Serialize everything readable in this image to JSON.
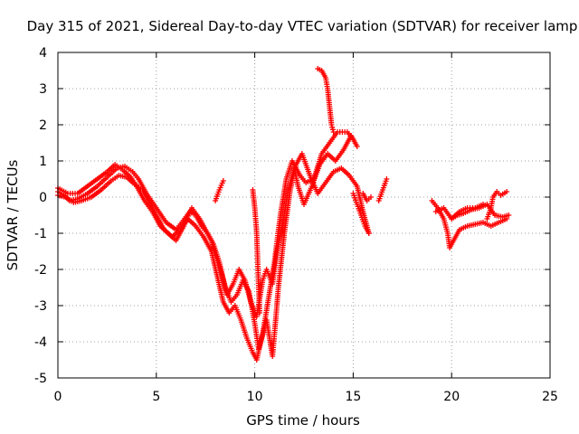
{
  "chart_data": {
    "type": "scatter",
    "title": "Day 315 of 2021, Sidereal Day-to-day VTEC variation (SDTVAR) for receiver lamp",
    "xlabel": "GPS time / hours",
    "ylabel": "SDTVAR / TECUs",
    "xlim": [
      0,
      25
    ],
    "ylim": [
      -5,
      4
    ],
    "xticks": [
      "0",
      "5",
      "10",
      "15",
      "20",
      "25"
    ],
    "yticks": [
      "-5",
      "-4",
      "-3",
      "-2",
      "-1",
      "0",
      "1",
      "2",
      "3",
      "4"
    ],
    "grid": true,
    "marker": "plus",
    "color": "#ff0000",
    "series": [
      {
        "values": [
          [
            0.0,
            0.15
          ],
          [
            0.3,
            0.05
          ],
          [
            0.6,
            -0.1
          ],
          [
            1.0,
            -0.05
          ],
          [
            1.5,
            0.1
          ],
          [
            2.0,
            0.3
          ],
          [
            2.5,
            0.55
          ],
          [
            3.0,
            0.8
          ],
          [
            3.4,
            0.85
          ],
          [
            3.8,
            0.7
          ],
          [
            4.1,
            0.5
          ],
          [
            4.5,
            0.1
          ],
          [
            5.0,
            -0.3
          ],
          [
            5.5,
            -0.7
          ],
          [
            6.0,
            -0.9
          ],
          [
            6.3,
            -0.7
          ],
          [
            6.7,
            -0.4
          ],
          [
            7.0,
            -0.5
          ],
          [
            7.3,
            -0.8
          ],
          [
            7.6,
            -1.0
          ],
          [
            7.9,
            -1.3
          ],
          [
            8.2,
            -1.8
          ],
          [
            8.5,
            -2.5
          ],
          [
            8.8,
            -2.9
          ],
          [
            9.1,
            -2.7
          ],
          [
            9.4,
            -2.3
          ],
          [
            9.7,
            -2.6
          ],
          [
            10.0,
            -3.5
          ],
          [
            10.2,
            -4.2
          ],
          [
            10.4,
            -3.8
          ],
          [
            10.7,
            -2.8
          ],
          [
            11.0,
            -1.8
          ],
          [
            11.3,
            -0.5
          ],
          [
            11.6,
            0.5
          ],
          [
            11.9,
            1.0
          ],
          [
            12.3,
            0.6
          ],
          [
            12.6,
            0.4
          ],
          [
            13.0,
            0.5
          ],
          [
            13.4,
            1.2
          ],
          [
            13.8,
            1.5
          ],
          [
            14.2,
            1.8
          ],
          [
            14.7,
            1.8
          ],
          [
            15.0,
            1.6
          ]
        ]
      },
      {
        "values": [
          [
            0.0,
            0.05
          ],
          [
            0.4,
            0.0
          ],
          [
            0.8,
            -0.15
          ],
          [
            1.2,
            -0.1
          ],
          [
            1.7,
            0.0
          ],
          [
            2.2,
            0.2
          ],
          [
            2.7,
            0.45
          ],
          [
            3.1,
            0.6
          ],
          [
            3.5,
            0.55
          ],
          [
            3.9,
            0.35
          ],
          [
            4.3,
            0.2
          ],
          [
            4.7,
            -0.2
          ],
          [
            5.1,
            -0.6
          ],
          [
            5.4,
            -0.9
          ],
          [
            5.8,
            -1.1
          ],
          [
            6.2,
            -0.9
          ],
          [
            6.6,
            -0.6
          ],
          [
            7.0,
            -0.8
          ],
          [
            7.4,
            -1.1
          ],
          [
            7.8,
            -1.5
          ],
          [
            8.1,
            -2.2
          ],
          [
            8.4,
            -2.9
          ],
          [
            8.7,
            -3.2
          ],
          [
            9.0,
            -3.0
          ],
          [
            9.3,
            -3.4
          ],
          [
            9.6,
            -3.9
          ],
          [
            9.9,
            -4.3
          ],
          [
            10.1,
            -4.5
          ],
          [
            10.3,
            -4.0
          ],
          [
            10.6,
            -3.4
          ],
          [
            10.9,
            -4.4
          ],
          [
            11.0,
            -3.8
          ],
          [
            11.2,
            -2.5
          ],
          [
            11.5,
            -1.0
          ],
          [
            11.8,
            0.2
          ],
          [
            12.1,
            0.9
          ],
          [
            12.4,
            1.2
          ],
          [
            12.8,
            0.6
          ],
          [
            13.2,
            0.1
          ],
          [
            13.6,
            0.4
          ],
          [
            14.0,
            0.7
          ],
          [
            14.4,
            0.8
          ],
          [
            14.8,
            0.6
          ],
          [
            15.2,
            0.3
          ],
          [
            15.5,
            -0.4
          ],
          [
            15.8,
            -1.0
          ]
        ]
      },
      {
        "values": [
          [
            0.0,
            0.25
          ],
          [
            0.5,
            0.1
          ],
          [
            1.0,
            0.1
          ],
          [
            1.5,
            0.3
          ],
          [
            2.0,
            0.5
          ],
          [
            2.5,
            0.7
          ],
          [
            2.9,
            0.9
          ],
          [
            3.3,
            0.75
          ],
          [
            3.7,
            0.55
          ],
          [
            4.0,
            0.3
          ],
          [
            4.4,
            -0.1
          ],
          [
            4.8,
            -0.4
          ],
          [
            5.2,
            -0.8
          ],
          [
            5.6,
            -1.0
          ],
          [
            6.0,
            -1.2
          ],
          [
            6.4,
            -0.8
          ],
          [
            6.8,
            -0.3
          ],
          [
            7.2,
            -0.6
          ],
          [
            7.5,
            -0.9
          ],
          [
            7.8,
            -1.2
          ],
          [
            8.0,
            -1.6
          ],
          [
            8.3,
            -2.1
          ],
          [
            8.6,
            -2.7
          ],
          [
            8.9,
            -2.4
          ],
          [
            9.2,
            -2.0
          ],
          [
            9.5,
            -2.3
          ],
          [
            9.8,
            -2.9
          ],
          [
            10.1,
            -3.3
          ],
          [
            10.4,
            -2.3
          ],
          [
            10.6,
            -2.0
          ],
          [
            10.9,
            -2.4
          ],
          [
            11.1,
            -1.6
          ],
          [
            11.4,
            -0.8
          ],
          [
            11.7,
            0.2
          ],
          [
            12.0,
            0.8
          ],
          [
            12.2,
            0.3
          ],
          [
            12.5,
            -0.2
          ],
          [
            12.9,
            0.3
          ],
          [
            13.3,
            0.9
          ],
          [
            13.7,
            1.2
          ],
          [
            14.1,
            1.0
          ],
          [
            14.5,
            1.3
          ],
          [
            14.9,
            1.7
          ],
          [
            15.2,
            1.4
          ]
        ]
      },
      {
        "values": [
          [
            8.0,
            -0.1
          ],
          [
            8.2,
            0.2
          ],
          [
            8.4,
            0.45
          ]
        ]
      },
      {
        "values": [
          [
            9.9,
            0.2
          ],
          [
            10.0,
            -0.3
          ],
          [
            10.1,
            -1.0
          ],
          [
            10.15,
            -1.8
          ],
          [
            10.2,
            -2.5
          ],
          [
            10.25,
            -3.2
          ]
        ]
      },
      {
        "values": [
          [
            13.2,
            3.55
          ],
          [
            13.4,
            3.5
          ],
          [
            13.6,
            3.3
          ],
          [
            13.7,
            3.0
          ],
          [
            13.8,
            2.5
          ],
          [
            13.9,
            2.0
          ],
          [
            14.0,
            1.8
          ]
        ]
      },
      {
        "values": [
          [
            15.0,
            0.1
          ],
          [
            15.2,
            -0.2
          ],
          [
            15.4,
            -0.5
          ],
          [
            15.6,
            -0.8
          ],
          [
            15.8,
            -1.0
          ]
        ]
      },
      {
        "values": [
          [
            15.5,
            0.1
          ],
          [
            15.7,
            -0.1
          ],
          [
            15.9,
            0.0
          ]
        ]
      },
      {
        "values": [
          [
            16.3,
            -0.1
          ],
          [
            16.5,
            0.2
          ],
          [
            16.7,
            0.5
          ]
        ]
      },
      {
        "values": [
          [
            19.0,
            -0.1
          ],
          [
            19.3,
            -0.3
          ],
          [
            19.6,
            -0.6
          ],
          [
            19.8,
            -1.0
          ],
          [
            19.9,
            -1.4
          ],
          [
            20.1,
            -1.2
          ],
          [
            20.4,
            -0.9
          ],
          [
            20.8,
            -0.8
          ],
          [
            21.2,
            -0.75
          ],
          [
            21.6,
            -0.7
          ],
          [
            22.0,
            -0.8
          ],
          [
            22.4,
            -0.7
          ],
          [
            22.8,
            -0.6
          ]
        ]
      },
      {
        "values": [
          [
            19.2,
            -0.4
          ],
          [
            19.6,
            -0.3
          ],
          [
            20.0,
            -0.6
          ],
          [
            20.4,
            -0.4
          ],
          [
            20.8,
            -0.3
          ],
          [
            21.2,
            -0.3
          ],
          [
            21.6,
            -0.2
          ]
        ]
      },
      {
        "values": [
          [
            21.8,
            -0.6
          ],
          [
            22.0,
            -0.3
          ],
          [
            22.1,
            0.0
          ],
          [
            22.3,
            0.15
          ],
          [
            22.5,
            0.05
          ],
          [
            22.8,
            0.15
          ]
        ]
      },
      {
        "values": [
          [
            20.0,
            -0.6
          ],
          [
            20.3,
            -0.5
          ],
          [
            20.6,
            -0.45
          ],
          [
            21.0,
            -0.35
          ],
          [
            21.4,
            -0.3
          ],
          [
            21.8,
            -0.2
          ],
          [
            22.2,
            -0.5
          ],
          [
            22.6,
            -0.55
          ],
          [
            22.9,
            -0.5
          ]
        ]
      }
    ]
  }
}
